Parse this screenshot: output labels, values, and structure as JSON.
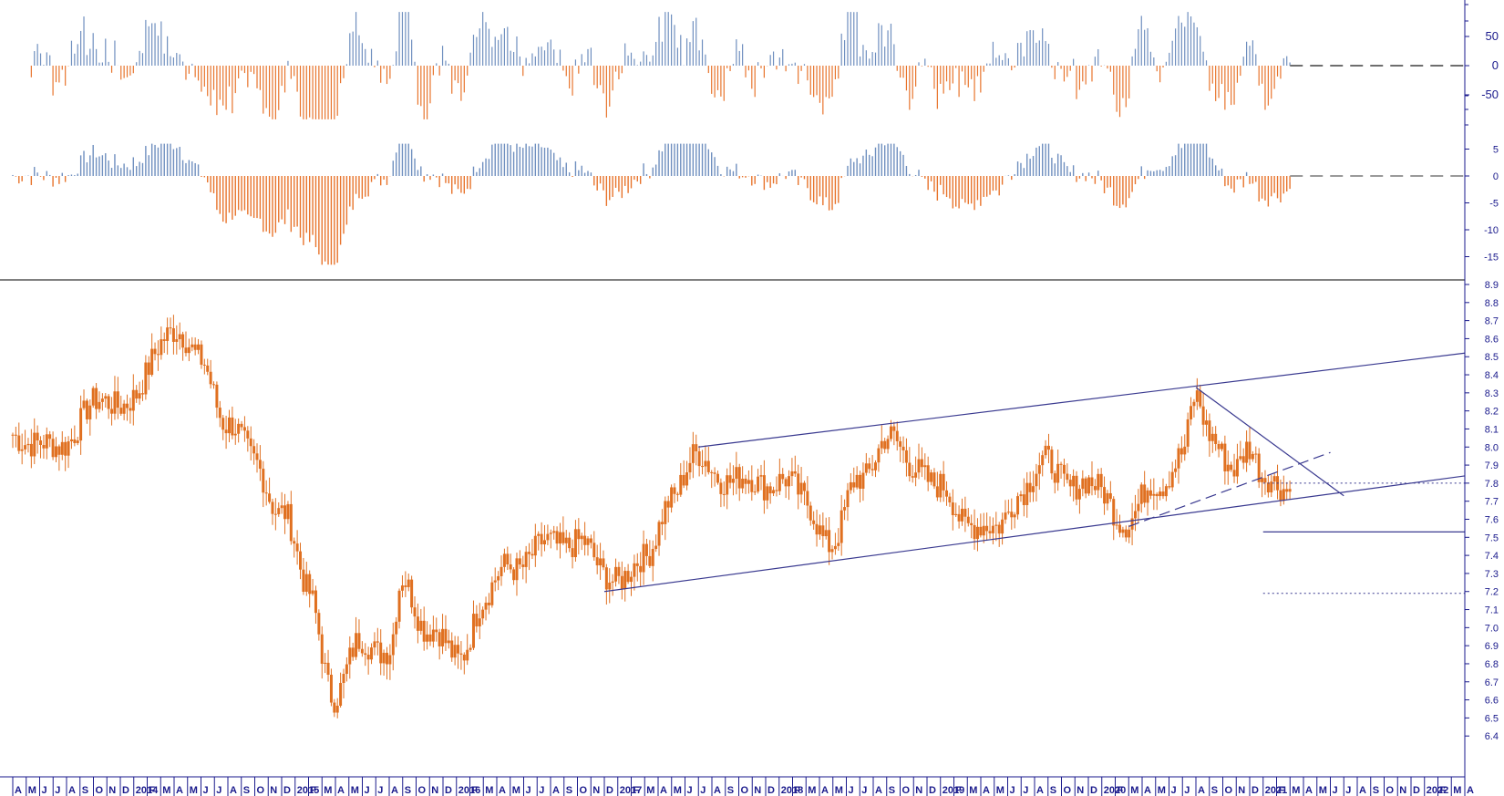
{
  "colors": {
    "up": "#6f8fbf",
    "down": "#e8742c",
    "candle": "#e07020",
    "axis": "#1a1a8c",
    "trend": "#3a3a90",
    "zero": "#6e6e6e"
  },
  "chart_data": [
    {
      "type": "bar",
      "panel": "oscillator-1",
      "yticks": [
        50,
        0,
        -50
      ],
      "ytick_labels": [
        "50",
        "0",
        "-50"
      ],
      "ylim": [
        -100,
        100
      ],
      "zero_line": "dashed"
    },
    {
      "type": "bar",
      "panel": "oscillator-2",
      "yticks": [
        5,
        0,
        -5,
        -10,
        -15
      ],
      "ytick_labels": [
        "5",
        "0",
        "-5",
        "-10",
        "-15"
      ],
      "ylim": [
        -17,
        8
      ],
      "zero_line": "dashed"
    },
    {
      "type": "candlestick",
      "panel": "price",
      "ylim": [
        6.3,
        8.9
      ],
      "yticks": [
        8.9,
        8.8,
        8.7,
        8.6,
        8.5,
        8.4,
        8.3,
        8.2,
        8.1,
        8.0,
        7.9,
        7.8,
        7.7,
        7.6,
        7.5,
        7.4,
        7.3,
        7.2,
        7.1,
        7.0,
        6.9,
        6.8,
        6.7,
        6.6,
        6.5,
        6.4
      ],
      "ytick_labels": [
        "8.9",
        "8.8",
        "8.7",
        "8.6",
        "8.5",
        "8.4",
        "8.3",
        "8.2",
        "8.1",
        "8.0",
        "7.9",
        "7.8",
        "7.7",
        "7.6",
        "7.5",
        "7.4",
        "7.3",
        "7.2",
        "7.1",
        "7.0",
        "6.9",
        "6.8",
        "6.7",
        "6.6",
        "6.5",
        "6.4"
      ],
      "x_start": "2013-04",
      "x_end": "2022-04",
      "month_labels": [
        "A",
        "M",
        "J",
        "J",
        "A",
        "S",
        "O",
        "N",
        "D",
        "2014",
        "F",
        "M",
        "A",
        "M",
        "J",
        "J",
        "A",
        "S",
        "O",
        "N",
        "D",
        "2015",
        "F",
        "M",
        "A",
        "M",
        "J",
        "J",
        "A",
        "S",
        "O",
        "N",
        "D",
        "2016",
        "F",
        "M",
        "A",
        "M",
        "J",
        "J",
        "A",
        "S",
        "O",
        "N",
        "D",
        "2017",
        "F",
        "M",
        "A",
        "M",
        "J",
        "J",
        "A",
        "S",
        "O",
        "N",
        "D",
        "2018",
        "F",
        "M",
        "A",
        "M",
        "J",
        "J",
        "A",
        "S",
        "O",
        "N",
        "D",
        "2019",
        "F",
        "M",
        "A",
        "M",
        "J",
        "J",
        "A",
        "S",
        "O",
        "N",
        "D",
        "2020",
        "F",
        "M",
        "A",
        "M",
        "J",
        "J",
        "A",
        "S",
        "O",
        "N",
        "D",
        "2021",
        "F",
        "M",
        "A",
        "M",
        "J",
        "J",
        "A",
        "S",
        "O",
        "N",
        "D",
        "2022",
        "F",
        "M",
        "A"
      ],
      "close_points": [
        [
          "2013-04",
          8.08
        ],
        [
          "2013-07",
          7.98
        ],
        [
          "2013-10",
          8.22
        ],
        [
          "2014-01",
          8.28
        ],
        [
          "2014-04",
          8.68
        ],
        [
          "2014-06",
          8.45
        ],
        [
          "2014-08",
          8.15
        ],
        [
          "2014-10",
          7.9
        ],
        [
          "2014-12",
          7.65
        ],
        [
          "2015-02",
          7.2
        ],
        [
          "2015-04",
          6.6
        ],
        [
          "2015-06",
          6.95
        ],
        [
          "2015-08",
          6.85
        ],
        [
          "2015-09",
          7.25
        ],
        [
          "2015-11",
          7.0
        ],
        [
          "2016-01",
          6.82
        ],
        [
          "2016-03",
          7.15
        ],
        [
          "2016-05",
          7.35
        ],
        [
          "2016-08",
          7.45
        ],
        [
          "2016-10",
          7.5
        ],
        [
          "2016-12",
          7.28
        ],
        [
          "2017-03",
          7.35
        ],
        [
          "2017-05",
          7.75
        ],
        [
          "2017-07",
          7.93
        ],
        [
          "2017-10",
          7.8
        ],
        [
          "2018-01",
          7.82
        ],
        [
          "2018-03",
          7.7
        ],
        [
          "2018-05",
          7.45
        ],
        [
          "2018-07",
          7.85
        ],
        [
          "2018-09",
          8.03
        ],
        [
          "2018-11",
          7.92
        ],
        [
          "2019-01",
          7.75
        ],
        [
          "2019-03",
          7.6
        ],
        [
          "2019-05",
          7.52
        ],
        [
          "2019-07",
          7.78
        ],
        [
          "2019-09",
          7.9
        ],
        [
          "2019-11",
          7.8
        ],
        [
          "2020-01",
          7.75
        ],
        [
          "2020-03",
          7.58
        ],
        [
          "2020-05",
          7.8
        ],
        [
          "2020-07",
          7.95
        ],
        [
          "2020-08",
          8.25
        ],
        [
          "2020-09",
          8.1
        ],
        [
          "2020-11",
          7.85
        ],
        [
          "2020-12",
          7.98
        ],
        [
          "2021-01",
          7.88
        ],
        [
          "2021-03",
          7.72
        ]
      ],
      "trendlines": [
        {
          "style": "solid",
          "from": [
            "2016-12",
            7.2
          ],
          "to": [
            "2022-04",
            7.84
          ]
        },
        {
          "style": "solid",
          "from": [
            "2017-07",
            8.0
          ],
          "to": [
            "2022-04",
            8.52
          ]
        },
        {
          "style": "solid",
          "from": [
            "2020-08",
            8.33
          ],
          "to": [
            "2021-07",
            7.73
          ]
        },
        {
          "style": "dashed",
          "from": [
            "2020-03",
            7.56
          ],
          "to": [
            "2021-06",
            7.97
          ]
        }
      ],
      "horizontal_levels": [
        {
          "value": 7.8,
          "style": "dotted"
        },
        {
          "value": 7.53,
          "style": "solid"
        },
        {
          "value": 7.19,
          "style": "dotted"
        }
      ]
    }
  ]
}
